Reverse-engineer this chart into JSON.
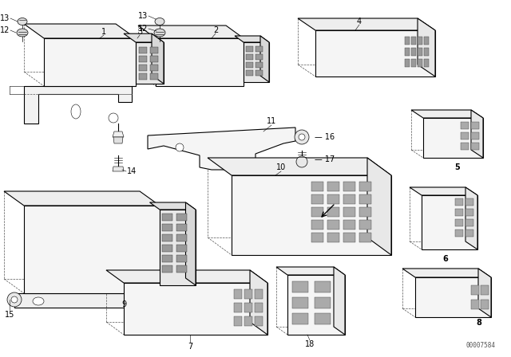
{
  "background": "#ffffff",
  "line_color": "#000000",
  "fill_color": "#ffffff",
  "dashed_color": "#555555",
  "watermark": "00007584",
  "lw_main": 0.8,
  "lw_dash": 0.5,
  "lw_thin": 0.4
}
